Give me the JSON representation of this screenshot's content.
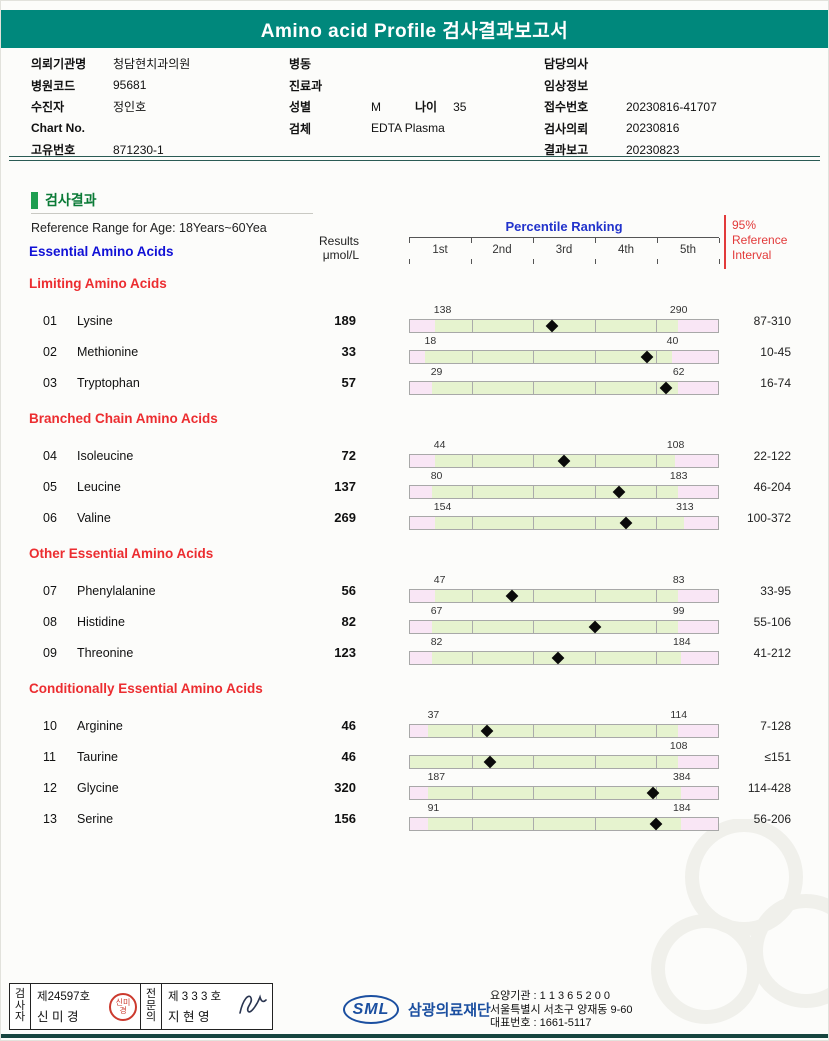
{
  "banner": {
    "title": "Amino acid Profile 검사결과보고서"
  },
  "patient_info": {
    "columns": [
      {
        "rows": [
          {
            "label": "의뢰기관명",
            "value": "청담현치과의원"
          },
          {
            "label": "병원코드",
            "value": "95681"
          },
          {
            "label": "수진자",
            "value": "정인호"
          },
          {
            "label": "Chart No.",
            "value": ""
          },
          {
            "label": "고유번호",
            "value": "871230-1"
          }
        ]
      },
      {
        "rows": [
          {
            "label": "병동",
            "value": ""
          },
          {
            "label": "진료과",
            "value": ""
          },
          {
            "label": "성별",
            "value": "M",
            "label2": "나이",
            "value2": "35"
          },
          {
            "label": "검체",
            "value": "EDTA Plasma"
          }
        ]
      },
      {
        "rows": [
          {
            "label": "담당의사",
            "value": ""
          },
          {
            "label": "임상정보",
            "value": ""
          },
          {
            "label": "접수번호",
            "value": "20230816-41707"
          },
          {
            "label": "검사의뢰",
            "value": "20230816"
          },
          {
            "label": "결과보고",
            "value": "20230823"
          }
        ]
      }
    ]
  },
  "results_header": {
    "section_title": "검사결과",
    "reference_range": "Reference Range for Age: 18Years~60Yea",
    "results_label": "Results",
    "results_unit": "μmol/L",
    "percentile_label": "Percentile Ranking",
    "percentile_ticks": [
      "1st",
      "2nd",
      "3rd",
      "4th",
      "5th"
    ],
    "ref95_lines": [
      "95%",
      "Reference",
      "Interval"
    ]
  },
  "chart_data": {
    "type": "table",
    "title": "Essential Amino Acids",
    "unit": "μmol/L",
    "groups": [
      {
        "name": "Limiting Amino Acids",
        "items": [
          {
            "no": "01",
            "name": "Lysine",
            "result": 189,
            "range_low": 138,
            "range_high": 290,
            "ref_interval": "87-310",
            "marker_pct": 46,
            "green_start_pct": 8,
            "green_end_pct": 87
          },
          {
            "no": "02",
            "name": "Methionine",
            "result": 33,
            "range_low": 18,
            "range_high": 40,
            "ref_interval": "10-45",
            "marker_pct": 77,
            "green_start_pct": 5,
            "green_end_pct": 85
          },
          {
            "no": "03",
            "name": "Tryptophan",
            "result": 57,
            "range_low": 29,
            "range_high": 62,
            "ref_interval": "16-74",
            "marker_pct": 83,
            "green_start_pct": 7,
            "green_end_pct": 87
          }
        ]
      },
      {
        "name": "Branched Chain Amino Acids",
        "items": [
          {
            "no": "04",
            "name": "Isoleucine",
            "result": 72,
            "range_low": 44,
            "range_high": 108,
            "ref_interval": "22-122",
            "marker_pct": 50,
            "green_start_pct": 8,
            "green_end_pct": 86
          },
          {
            "no": "05",
            "name": "Leucine",
            "result": 137,
            "range_low": 80,
            "range_high": 183,
            "ref_interval": "46-204",
            "marker_pct": 68,
            "green_start_pct": 7,
            "green_end_pct": 87
          },
          {
            "no": "06",
            "name": "Valine",
            "result": 269,
            "range_low": 154,
            "range_high": 313,
            "ref_interval": "100-372",
            "marker_pct": 70,
            "green_start_pct": 8,
            "green_end_pct": 89
          }
        ]
      },
      {
        "name": "Other Essential Amino Acids",
        "items": [
          {
            "no": "07",
            "name": "Phenylalanine",
            "result": 56,
            "range_low": 47,
            "range_high": 83,
            "ref_interval": "33-95",
            "marker_pct": 33,
            "green_start_pct": 8,
            "green_end_pct": 87
          },
          {
            "no": "08",
            "name": "Histidine",
            "result": 82,
            "range_low": 67,
            "range_high": 99,
            "ref_interval": "55-106",
            "marker_pct": 60,
            "green_start_pct": 7,
            "green_end_pct": 87
          },
          {
            "no": "09",
            "name": "Threonine",
            "result": 123,
            "range_low": 82,
            "range_high": 184,
            "ref_interval": "41-212",
            "marker_pct": 48,
            "green_start_pct": 7,
            "green_end_pct": 88
          }
        ]
      },
      {
        "name": "Conditionally Essential Amino Acids",
        "items": [
          {
            "no": "10",
            "name": "Arginine",
            "result": 46,
            "range_low": 37,
            "range_high": 114,
            "ref_interval": "7-128",
            "marker_pct": 25,
            "green_start_pct": 6,
            "green_end_pct": 87
          },
          {
            "no": "11",
            "name": "Taurine",
            "result": 46,
            "range_low": null,
            "range_high": 108,
            "ref_interval": "≤151",
            "marker_pct": 26,
            "green_start_pct": 0,
            "green_end_pct": 87
          },
          {
            "no": "12",
            "name": "Glycine",
            "result": 320,
            "range_low": 187,
            "range_high": 384,
            "ref_interval": "114-428",
            "marker_pct": 79,
            "green_start_pct": 6,
            "green_end_pct": 88
          },
          {
            "no": "13",
            "name": "Serine",
            "result": 156,
            "range_low": 91,
            "range_high": 184,
            "ref_interval": "56-206",
            "marker_pct": 80,
            "green_start_pct": 6,
            "green_end_pct": 88
          }
        ]
      }
    ]
  },
  "footer": {
    "signers": [
      {
        "role": "검사자",
        "cert": "제24597호",
        "name": "신 미 경",
        "mark": "stamp"
      },
      {
        "role": "전문의",
        "cert": "제 3 3 3 호",
        "name": "지 현 영",
        "mark": "signature"
      }
    ],
    "org": {
      "logo": "SML",
      "name": "삼광의료재단",
      "lines": [
        "요양기관 : 1 1 3 6 5 2 0 0",
        "서울특별시 서초구 양재동 9-60",
        "대표번호 : 1661-5117"
      ]
    }
  },
  "colors": {
    "banner_teal": "#00887C",
    "section_green": "#0A7A36",
    "group_blue": "#1111D6",
    "subgroup_red": "#EC2D30",
    "percentile_blue": "#2233CC",
    "ref95_red": "#E23A3A",
    "bar_green": "#E6F3CF",
    "bar_pink": "#F9E6F5",
    "marker_black": "#0A0A0A",
    "logo_blue": "#1B4FA0"
  }
}
